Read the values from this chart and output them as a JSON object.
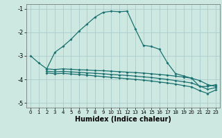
{
  "xlabel": "Humidex (Indice chaleur)",
  "bg_color": "#cce8e0",
  "grid_color": "#aacccc",
  "line_color": "#1a7070",
  "xlim": [
    -0.5,
    23.5
  ],
  "ylim": [
    -5.2,
    -0.8
  ],
  "yticks": [
    -5,
    -4,
    -3,
    -2,
    -1
  ],
  "xticks": [
    0,
    1,
    2,
    3,
    4,
    5,
    6,
    7,
    8,
    9,
    10,
    11,
    12,
    13,
    14,
    15,
    16,
    17,
    18,
    19,
    20,
    21,
    22,
    23
  ],
  "line1_x": [
    0,
    1,
    2,
    3,
    4,
    5,
    6,
    7,
    8,
    9,
    10,
    11,
    12,
    13,
    14,
    15,
    16,
    17,
    18,
    19,
    20,
    21,
    22,
    23
  ],
  "line1_y": [
    -3.0,
    -3.3,
    -3.55,
    -2.85,
    -2.6,
    -2.3,
    -1.95,
    -1.65,
    -1.35,
    -1.15,
    -1.1,
    -1.12,
    -1.1,
    -1.85,
    -2.55,
    -2.6,
    -2.72,
    -3.3,
    -3.75,
    -3.85,
    -3.95,
    -4.3,
    -4.3,
    -4.22
  ],
  "line2_x": [
    2,
    3,
    4,
    5,
    6,
    7,
    8,
    9,
    10,
    11,
    12,
    13,
    14,
    15,
    16,
    17,
    18,
    19,
    20,
    21,
    22,
    23
  ],
  "line2_y": [
    -3.55,
    -3.58,
    -3.55,
    -3.57,
    -3.59,
    -3.6,
    -3.62,
    -3.63,
    -3.65,
    -3.67,
    -3.69,
    -3.71,
    -3.73,
    -3.76,
    -3.79,
    -3.82,
    -3.86,
    -3.9,
    -3.95,
    -4.05,
    -4.22,
    -4.3
  ],
  "line3_x": [
    2,
    3,
    4,
    5,
    6,
    7,
    8,
    9,
    10,
    11,
    12,
    13,
    14,
    15,
    16,
    17,
    18,
    19,
    20,
    21,
    22,
    23
  ],
  "line3_y": [
    -3.65,
    -3.68,
    -3.66,
    -3.68,
    -3.7,
    -3.72,
    -3.74,
    -3.76,
    -3.79,
    -3.81,
    -3.83,
    -3.86,
    -3.89,
    -3.92,
    -3.96,
    -4.0,
    -4.05,
    -4.1,
    -4.15,
    -4.28,
    -4.42,
    -4.35
  ],
  "line4_x": [
    2,
    3,
    4,
    5,
    6,
    7,
    8,
    9,
    10,
    11,
    12,
    13,
    14,
    15,
    16,
    17,
    18,
    19,
    20,
    21,
    22,
    23
  ],
  "line4_y": [
    -3.72,
    -3.76,
    -3.74,
    -3.77,
    -3.79,
    -3.82,
    -3.85,
    -3.88,
    -3.91,
    -3.94,
    -3.97,
    -4.0,
    -4.03,
    -4.07,
    -4.11,
    -4.15,
    -4.2,
    -4.26,
    -4.32,
    -4.48,
    -4.6,
    -4.45
  ]
}
